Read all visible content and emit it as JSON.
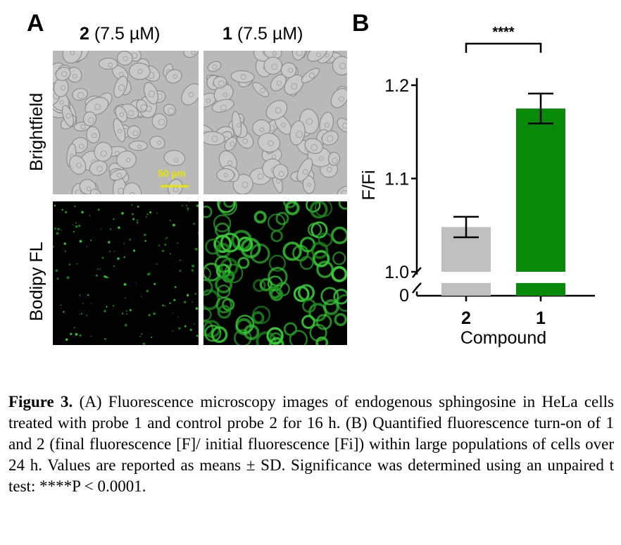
{
  "panel_a": {
    "letter": "A",
    "columns": [
      {
        "compound": "2",
        "conc": "(7.5 µM)"
      },
      {
        "compound": "1",
        "conc": "(7.5 µM)"
      }
    ],
    "rows": [
      "Brightfield",
      "Bodipy FL"
    ],
    "scale_bar": "50 µm"
  },
  "panel_b": {
    "letter": "B"
  },
  "chart_data": {
    "type": "bar",
    "categories": [
      "2",
      "1"
    ],
    "values": [
      1.048,
      1.175
    ],
    "errors": [
      0.011,
      0.016
    ],
    "colors": [
      "#bfbfbf",
      "#0a8a0a"
    ],
    "xlabel": "Compound",
    "ylabel": "F/Fi",
    "ylim": [
      1.0,
      1.2
    ],
    "y_ticks": [
      "1.0",
      "1.1",
      "1.2"
    ],
    "y_break_label": "0",
    "significance": "****"
  },
  "caption": {
    "lead": "Figure 3.",
    "text": " (A) Fluorescence microscopy images of endogenous sphingosine in HeLa cells treated with probe 1 and control probe 2 for 16 h. (B) Quantified fluorescence turn-on of 1 and 2 (final fluorescence [F]/ initial fluorescence [Fi]) within large populations of cells over 24 h. Values are reported as means ± SD. Significance was determined using an unpaired t test: ****P < 0.0001."
  }
}
